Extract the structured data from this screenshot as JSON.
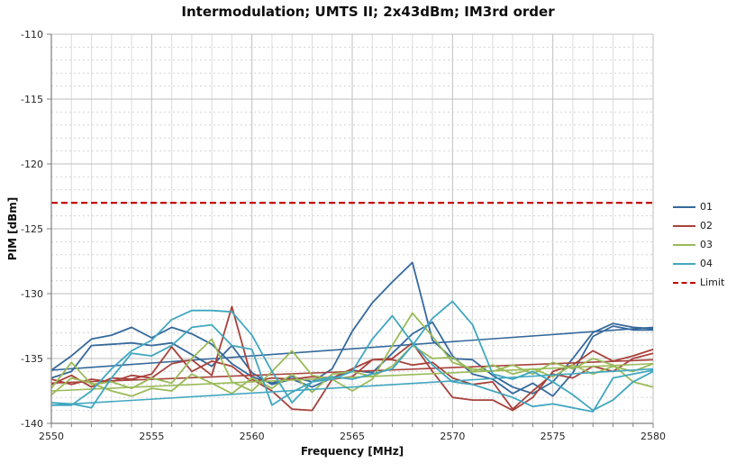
{
  "page": {
    "background": "#ffffff"
  },
  "chart_data": {
    "type": "line",
    "title": "Intermodulation; UMTS II; 2x43dBm; IM3rd order",
    "xlabel": "Frequency [MHz]",
    "ylabel": "PIM [dBm]",
    "xlim": [
      2550,
      2580
    ],
    "ylim": [
      -140,
      -110
    ],
    "x_major_ticks": [
      2550,
      2555,
      2560,
      2565,
      2570,
      2575,
      2580
    ],
    "x_minor_step": 1,
    "y_major_ticks": [
      -110,
      -115,
      -120,
      -125,
      -130,
      -135,
      -140
    ],
    "y_minor_step": 1,
    "grid": true,
    "legend_position": "right",
    "colors": {
      "grid_major": "#bfbfbf",
      "grid_minor_v": "#dcdcdc",
      "grid_minor_h": "#d4d4d4",
      "axis": "#7f7f7f",
      "text": "#262626"
    },
    "x": [
      2550,
      2551,
      2552,
      2553,
      2554,
      2555,
      2556,
      2557,
      2558,
      2559,
      2560,
      2561,
      2562,
      2563,
      2564,
      2565,
      2566,
      2567,
      2568,
      2569,
      2570,
      2571,
      2572,
      2573,
      2574,
      2575,
      2576,
      2577,
      2578,
      2579,
      2580
    ],
    "series": [
      {
        "name": "01",
        "color": "#35699c",
        "traces": [
          [
            -135.9,
            -134.8,
            -133.5,
            -133.2,
            -132.6,
            -133.4,
            -132.6,
            -133.1,
            -133.9,
            -135.4,
            -136.4,
            -136.9,
            -136.4,
            -136.8,
            -135.8,
            -132.9,
            -130.7,
            -129.1,
            -127.6,
            -133.6,
            -135.0,
            -135.1,
            -136.3,
            -137.2,
            -137.7,
            -136.8,
            -135.0,
            -133.0,
            -132.3,
            -132.6,
            -132.7
          ],
          [
            -136.5,
            -136.0,
            -134.0,
            -133.9,
            -133.8,
            -134.0,
            -133.8,
            -134.7,
            -135.6,
            -134.0,
            -136.1,
            -137.0,
            -136.6,
            -137.2,
            -136.5,
            -135.9,
            -136.1,
            -134.6,
            -133.1,
            -132.2,
            -134.8,
            -136.2,
            -136.6,
            -137.7,
            -136.9,
            -137.9,
            -136.1,
            -133.3,
            -132.5,
            -132.8,
            -132.8
          ]
        ],
        "trend": [
          -135.9,
          -132.6
        ]
      },
      {
        "name": "02",
        "color": "#a8423c",
        "traces": [
          [
            -136.6,
            -137.0,
            -136.6,
            -136.8,
            -136.3,
            -136.5,
            -135.4,
            -135.1,
            -136.3,
            -131.0,
            -136.6,
            -137.5,
            -138.9,
            -139.0,
            -136.6,
            -136.4,
            -135.1,
            -135.0,
            -133.8,
            -136.0,
            -138.0,
            -138.2,
            -138.2,
            -139.0,
            -138.0,
            -136.0,
            -135.5,
            -134.4,
            -135.2,
            -134.8,
            -134.3
          ],
          [
            -137.0,
            -136.3,
            -137.2,
            -136.5,
            -136.6,
            -136.2,
            -134.1,
            -136.0,
            -135.2,
            -135.6,
            -136.8,
            -136.5,
            -136.6,
            -136.4,
            -136.5,
            -135.8,
            -135.1,
            -135.1,
            -135.5,
            -135.3,
            -136.5,
            -137.0,
            -136.8,
            -138.9,
            -137.5,
            -136.2,
            -136.5,
            -135.6,
            -136.0,
            -135.0,
            -134.6
          ]
        ],
        "trend": [
          -136.9,
          -135.1
        ]
      },
      {
        "name": "03",
        "color": "#9aba58",
        "traces": [
          [
            -137.3,
            -135.3,
            -137.0,
            -136.8,
            -137.3,
            -136.5,
            -136.9,
            -135.0,
            -133.5,
            -136.8,
            -137.5,
            -136.0,
            -134.4,
            -136.3,
            -136.6,
            -137.5,
            -136.6,
            -134.0,
            -131.5,
            -133.3,
            -135.3,
            -135.8,
            -136.0,
            -135.5,
            -136.2,
            -135.3,
            -135.8,
            -135.0,
            -135.5,
            -136.8,
            -137.2
          ],
          [
            -137.8,
            -136.5,
            -136.9,
            -137.5,
            -137.9,
            -137.3,
            -137.5,
            -136.2,
            -136.9,
            -137.7,
            -136.5,
            -137.3,
            -136.2,
            -137.6,
            -136.2,
            -136.0,
            -136.4,
            -135.6,
            -134.0,
            -135.0,
            -134.9,
            -136.0,
            -135.5,
            -136.2,
            -135.8,
            -136.4,
            -135.5,
            -136.2,
            -135.6,
            -136.0,
            -135.4
          ]
        ],
        "trend": [
          -137.5,
          -135.4
        ]
      },
      {
        "name": "04",
        "color": "#41a7bf",
        "traces": [
          [
            -138.6,
            -138.6,
            -137.5,
            -135.8,
            -134.4,
            -133.6,
            -132.0,
            -131.3,
            -131.3,
            -131.4,
            -133.2,
            -136.0,
            -138.4,
            -136.8,
            -136.6,
            -136.0,
            -133.5,
            -131.7,
            -133.8,
            -135.5,
            -136.8,
            -137.0,
            -137.5,
            -138.0,
            -138.7,
            -138.5,
            -138.8,
            -139.1,
            -136.5,
            -136.2,
            -135.9
          ],
          [
            -138.4,
            -138.5,
            -138.8,
            -136.5,
            -134.6,
            -134.8,
            -134.0,
            -132.6,
            -132.4,
            -134.0,
            -134.3,
            -138.6,
            -137.6,
            -136.8,
            -136.4,
            -136.6,
            -136.2,
            -135.8,
            -134.0,
            -131.9,
            -130.6,
            -132.4,
            -136.2,
            -136.6,
            -136.0,
            -136.8,
            -137.8,
            -139.0,
            -138.2,
            -136.8,
            -136.0
          ]
        ],
        "trend": [
          -138.6,
          -135.8
        ]
      }
    ],
    "limit": {
      "label": "Limit",
      "color": "#c00000",
      "value": -123,
      "style": "dashed"
    }
  }
}
